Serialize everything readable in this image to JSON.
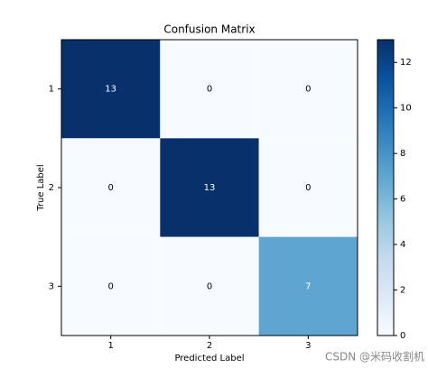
{
  "chart_data": {
    "type": "heatmap",
    "title": "Confusion Matrix",
    "x_label": "Predicted Label",
    "y_label": "True Label",
    "x_categories": [
      "1",
      "2",
      "3"
    ],
    "y_categories": [
      "1",
      "2",
      "3"
    ],
    "values": [
      [
        13,
        0,
        0
      ],
      [
        0,
        13,
        0
      ],
      [
        0,
        0,
        7
      ]
    ],
    "colormap": "Blues",
    "clim": [
      0,
      13
    ],
    "cticks": [
      0,
      2,
      4,
      6,
      8,
      10,
      12
    ],
    "watermark": "CSDN @米码收割机"
  }
}
